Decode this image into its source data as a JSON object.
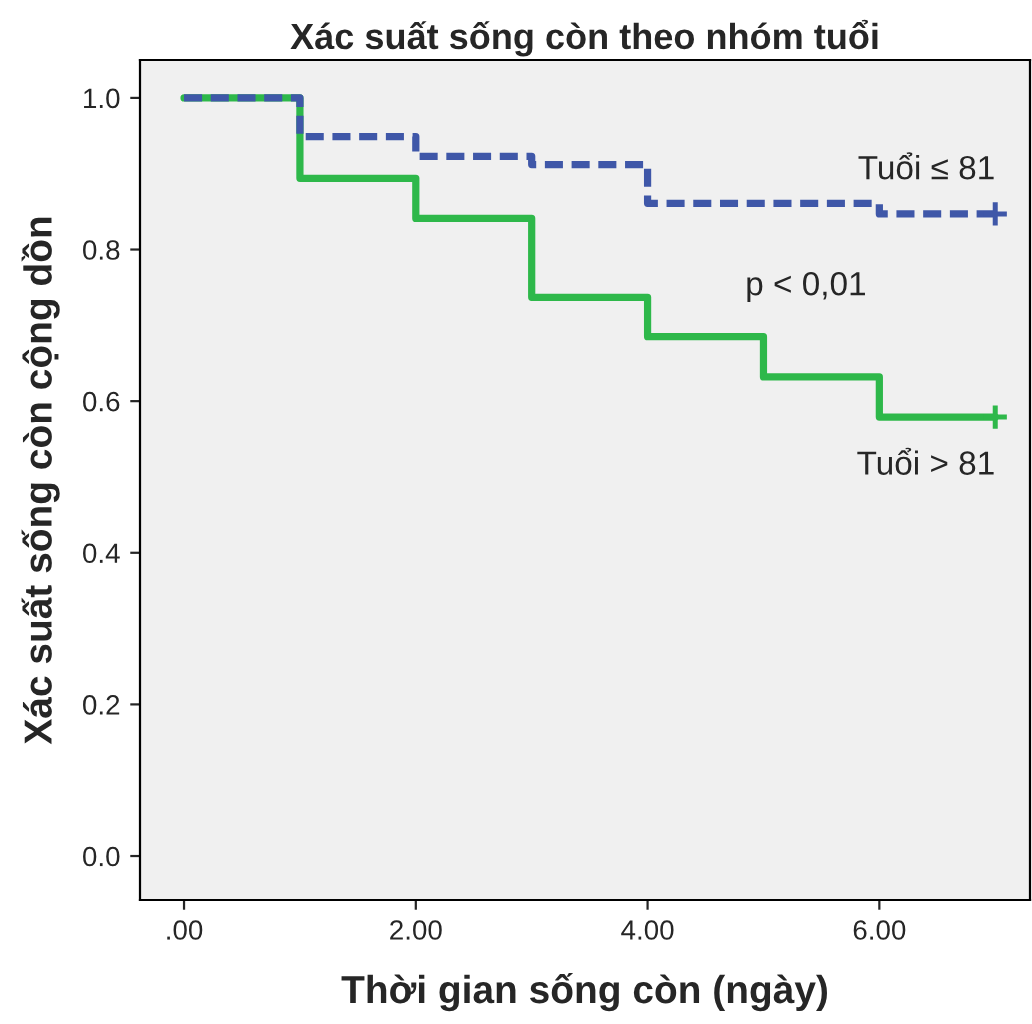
{
  "chart_data": {
    "type": "step",
    "title": "Xác suất sống còn theo nhóm tuổi",
    "xlabel": "Thời gian sống còn (ngày)",
    "ylabel": "Xác suất sống còn cộng dồn",
    "series": [
      {
        "name": "Tuổi ≤ 81",
        "color": "#3f57a8",
        "line_style": "dashed",
        "x": [
          0,
          1,
          2,
          3,
          4,
          6,
          7
        ],
        "values": [
          1.0,
          0.949,
          0.923,
          0.912,
          0.861,
          0.847,
          0.847
        ]
      },
      {
        "name": "Tuổi > 81",
        "color": "#2eb84a",
        "line_style": "solid",
        "x": [
          0,
          1,
          2,
          3,
          4,
          5,
          6,
          7
        ],
        "values": [
          1.0,
          0.894,
          0.841,
          0.737,
          0.685,
          0.632,
          0.579,
          0.579
        ]
      },
      {
        "type": "scatter",
        "marker": "cross",
        "color": "#3f57a8",
        "x": [
          7
        ],
        "values": [
          0.847
        ]
      },
      {
        "type": "scatter",
        "marker": "cross",
        "color": "#2eb84a",
        "x": [
          7
        ],
        "values": [
          0.579
        ]
      }
    ],
    "annotations": [
      "p < 0,01"
    ],
    "xlim": [
      -0.38,
      7.3
    ],
    "ylim": [
      -0.058,
      1.05
    ],
    "xticks": [
      {
        "value": 0,
        "label": ".00"
      },
      {
        "value": 2,
        "label": "2.00"
      },
      {
        "value": 4,
        "label": "4.00"
      },
      {
        "value": 6,
        "label": "6.00"
      }
    ],
    "yticks": [
      {
        "value": 0,
        "label": "0.0"
      },
      {
        "value": 0.2,
        "label": "0.2"
      },
      {
        "value": 0.4,
        "label": "0.4"
      },
      {
        "value": 0.6,
        "label": "0.6"
      },
      {
        "value": 0.8,
        "label": "0.8"
      },
      {
        "value": 1.0,
        "label": "1.0"
      }
    ],
    "grid": false,
    "legend": false
  }
}
